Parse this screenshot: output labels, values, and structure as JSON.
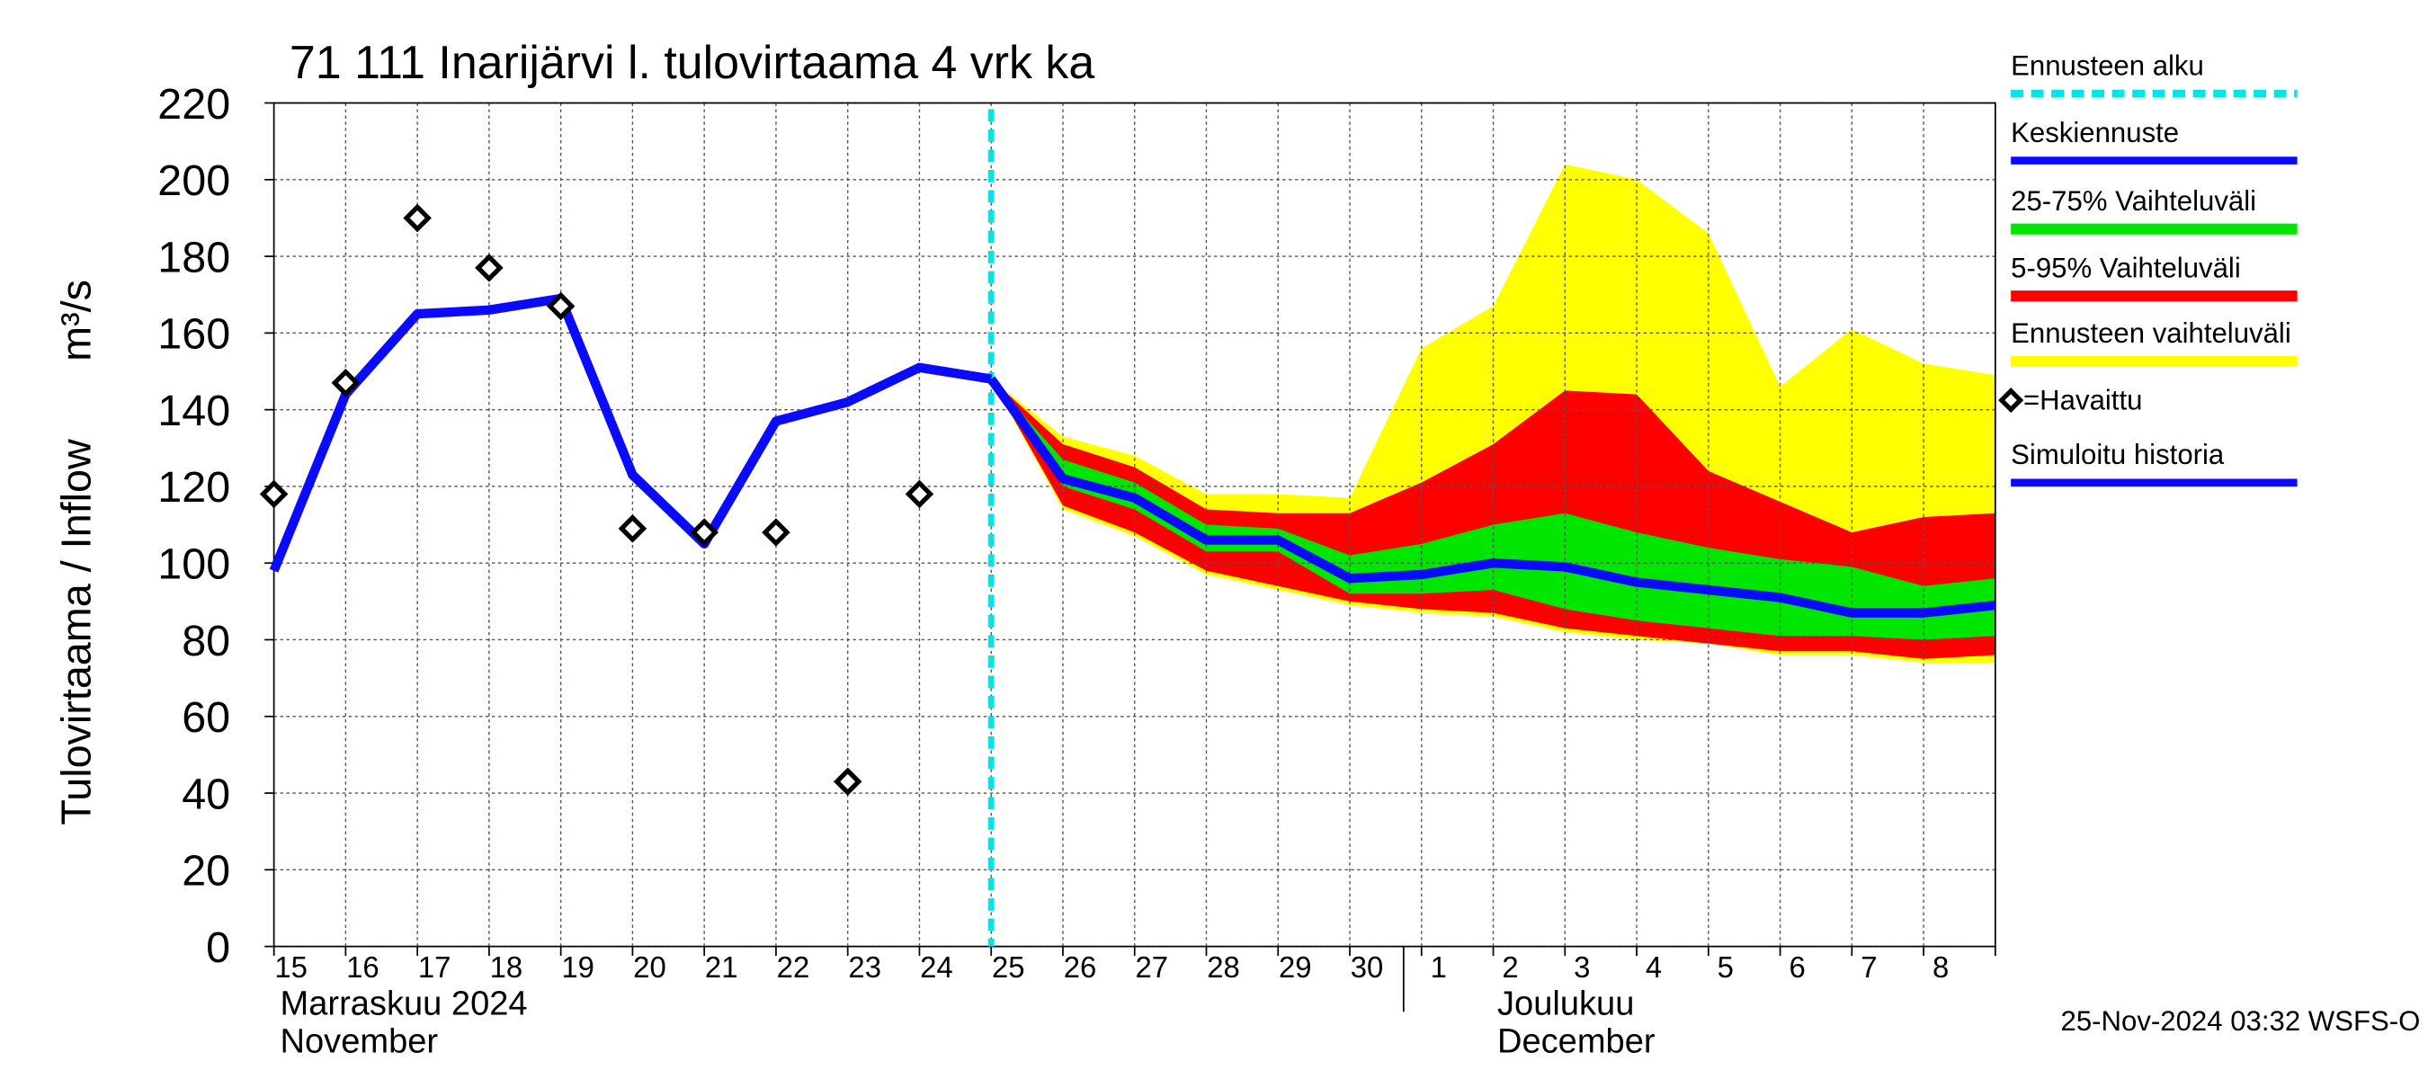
{
  "chart_data": {
    "type": "line",
    "title": "71 111 Inarijärvi l. tulovirtaama 4 vrk ka",
    "y_label": "Tulovirtaama / Inflow",
    "y_unit": "m³/s",
    "month_labels": [
      "Marraskuu 2024",
      "November",
      "Joulukuu",
      "December"
    ],
    "footer": "25-Nov-2024 03:32 WSFS-O",
    "categories": [
      "15",
      "16",
      "17",
      "18",
      "19",
      "20",
      "21",
      "22",
      "23",
      "24",
      "25",
      "26",
      "27",
      "28",
      "29",
      "30",
      "1",
      "2",
      "3",
      "4",
      "5",
      "6",
      "7",
      "8",
      null
    ],
    "ylim": [
      0,
      220
    ],
    "yticks": [
      0,
      20,
      40,
      60,
      80,
      100,
      120,
      140,
      160,
      180,
      200,
      220
    ],
    "grid": true,
    "forecast_start": {
      "name": "Ennusteen alku",
      "color": "#00e5e5"
    },
    "bands": [
      {
        "name": "Ennusteen vaihteluväli",
        "color": "#ffff00",
        "upper": [
          null,
          null,
          null,
          null,
          null,
          null,
          null,
          null,
          null,
          null,
          148,
          133,
          128,
          118,
          118,
          117,
          156,
          167,
          204,
          200,
          186,
          146,
          161,
          152,
          149
        ],
        "lower": [
          null,
          null,
          null,
          null,
          null,
          null,
          null,
          null,
          null,
          null,
          148,
          114,
          107,
          97,
          93,
          89,
          87,
          86,
          82,
          80,
          79,
          76,
          76,
          74,
          74
        ]
      },
      {
        "name": "5-95% Vaihteluväli",
        "color": "#ff0000",
        "upper": [
          null,
          null,
          null,
          null,
          null,
          null,
          null,
          null,
          null,
          null,
          148,
          131,
          125,
          114,
          113,
          113,
          121,
          131,
          145,
          144,
          124,
          116,
          108,
          112,
          113
        ],
        "lower": [
          null,
          null,
          null,
          null,
          null,
          null,
          null,
          null,
          null,
          null,
          148,
          115,
          108,
          98,
          94,
          90,
          88,
          87,
          83,
          81,
          79,
          77,
          77,
          75,
          76
        ]
      },
      {
        "name": "25-75% Vaihteluväli",
        "color": "#00e600",
        "upper": [
          null,
          null,
          null,
          null,
          null,
          null,
          null,
          null,
          null,
          null,
          148,
          127,
          121,
          110,
          109,
          102,
          105,
          110,
          113,
          108,
          104,
          101,
          99,
          94,
          96
        ],
        "lower": [
          null,
          null,
          null,
          null,
          null,
          null,
          null,
          null,
          null,
          null,
          148,
          120,
          114,
          103,
          103,
          92,
          92,
          93,
          88,
          85,
          83,
          81,
          81,
          80,
          81
        ]
      }
    ],
    "series": [
      {
        "name": "Keskiennuste",
        "color": "#0a0aff",
        "values": [
          null,
          null,
          null,
          null,
          null,
          null,
          null,
          null,
          null,
          null,
          148,
          122,
          117,
          106,
          106,
          96,
          97,
          100,
          99,
          95,
          93,
          91,
          87,
          87,
          89
        ]
      },
      {
        "name": "Simuloitu historia",
        "color": "#0a0aff",
        "values": [
          98,
          144,
          165,
          166,
          169,
          123,
          105,
          137,
          142,
          151,
          148,
          null,
          null,
          null,
          null,
          null,
          null,
          null,
          null,
          null,
          null,
          null,
          null,
          null,
          null
        ]
      }
    ],
    "observed": {
      "name": "=Havaittu",
      "color": "#000000",
      "values": [
        118,
        147,
        190,
        177,
        167,
        109,
        108,
        108,
        43,
        118,
        null,
        null,
        null,
        null,
        null,
        null,
        null,
        null,
        null,
        null,
        null,
        null,
        null,
        null,
        null
      ]
    }
  }
}
